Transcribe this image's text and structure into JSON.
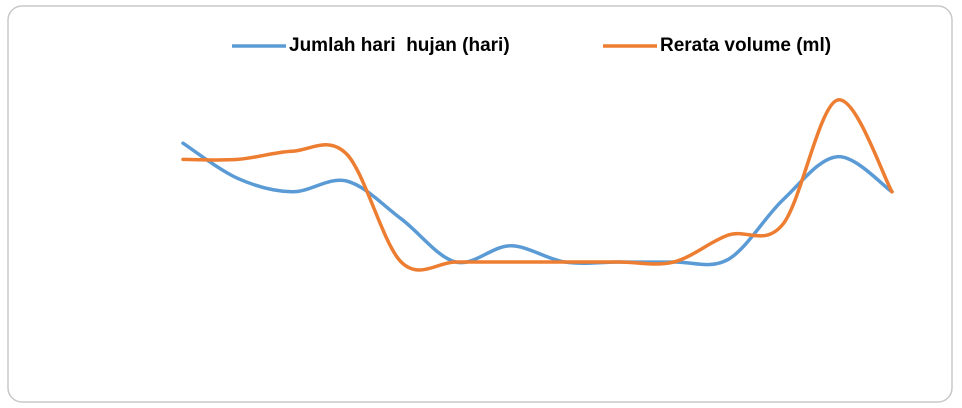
{
  "chart_data": {
    "type": "line",
    "categories": [
      null,
      null,
      null,
      null,
      null,
      null,
      null,
      null,
      null,
      null,
      null,
      null,
      null,
      null
    ],
    "series": [
      {
        "name": "Jumlah hari  hujan (hari)",
        "color": "#5b9bd5",
        "values": [
          8.4,
          7.1,
          6.6,
          7.0,
          5.6,
          4.0,
          4.6,
          4.0,
          4.0,
          4.0,
          4.1,
          6.3,
          7.9,
          6.6
        ]
      },
      {
        "name": "Rerata volume (ml)",
        "color": "#ed7d31",
        "values": [
          7.8,
          7.8,
          8.1,
          8.0,
          4.0,
          4.0,
          4.0,
          4.0,
          4.0,
          4.0,
          5.0,
          5.4,
          10.0,
          6.6
        ]
      }
    ],
    "ylim": [
      0,
      11
    ],
    "smooth": true,
    "legend": "top"
  }
}
